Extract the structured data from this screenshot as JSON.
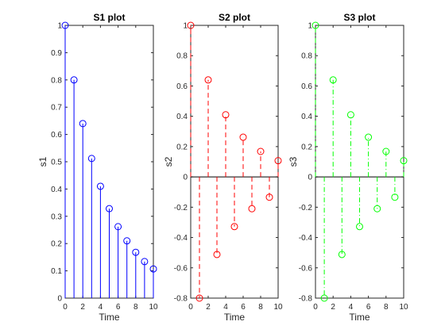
{
  "chart_data": [
    {
      "type": "stem",
      "title": "S1 plot",
      "xlabel": "Time",
      "ylabel": "s1",
      "xlim": [
        0,
        10
      ],
      "ylim": [
        0,
        1
      ],
      "xticks": [
        0,
        2,
        4,
        6,
        8,
        10
      ],
      "yticks": [
        0,
        0.1,
        0.2,
        0.3,
        0.4,
        0.5,
        0.6,
        0.7,
        0.8,
        0.9,
        1
      ],
      "ytick_labels": [
        "0",
        "0.1",
        "0.2",
        "0.3",
        "0.4",
        "0.5",
        "0.6",
        "0.7",
        "0.8",
        "0.9",
        "1"
      ],
      "color": "#0000ff",
      "line_style": "solid",
      "x": [
        0,
        1,
        2,
        3,
        4,
        5,
        6,
        7,
        8,
        9,
        10
      ],
      "values": [
        1.0,
        0.8,
        0.64,
        0.512,
        0.41,
        0.328,
        0.262,
        0.21,
        0.168,
        0.134,
        0.107
      ]
    },
    {
      "type": "stem",
      "title": "S2 plot",
      "xlabel": "Time",
      "ylabel": "s2",
      "xlim": [
        0,
        10
      ],
      "ylim": [
        -0.8,
        1
      ],
      "xticks": [
        0,
        2,
        4,
        6,
        8,
        10
      ],
      "yticks": [
        -0.8,
        -0.6,
        -0.4,
        -0.2,
        0,
        0.2,
        0.4,
        0.6,
        0.8,
        1
      ],
      "ytick_labels": [
        "-0.8",
        "-0.6",
        "-0.4",
        "-0.2",
        "0",
        "0.2",
        "0.4",
        "0.6",
        "0.8",
        "1"
      ],
      "color": "#ff0000",
      "line_style": "dashed",
      "x": [
        0,
        1,
        2,
        3,
        4,
        5,
        6,
        7,
        8,
        9,
        10
      ],
      "values": [
        1.0,
        -0.8,
        0.64,
        -0.512,
        0.41,
        -0.328,
        0.262,
        -0.21,
        0.168,
        -0.134,
        0.107
      ]
    },
    {
      "type": "stem",
      "title": "S3 plot",
      "xlabel": "Time",
      "ylabel": "s3",
      "xlim": [
        0,
        10
      ],
      "ylim": [
        -0.8,
        1
      ],
      "xticks": [
        0,
        2,
        4,
        6,
        8,
        10
      ],
      "yticks": [
        -0.8,
        -0.6,
        -0.4,
        -0.2,
        0,
        0.2,
        0.4,
        0.6,
        0.8,
        1
      ],
      "ytick_labels": [
        "-0.8",
        "-0.6",
        "-0.4",
        "-0.2",
        "0",
        "0.2",
        "0.4",
        "0.6",
        "0.8",
        "1"
      ],
      "color": "#00ff00",
      "line_style": "dash-dot",
      "x": [
        0,
        1,
        2,
        3,
        4,
        5,
        6,
        7,
        8,
        9,
        10
      ],
      "values": [
        1.0,
        -0.8,
        0.64,
        -0.512,
        0.41,
        -0.328,
        0.262,
        -0.21,
        0.168,
        -0.134,
        0.107
      ]
    }
  ]
}
